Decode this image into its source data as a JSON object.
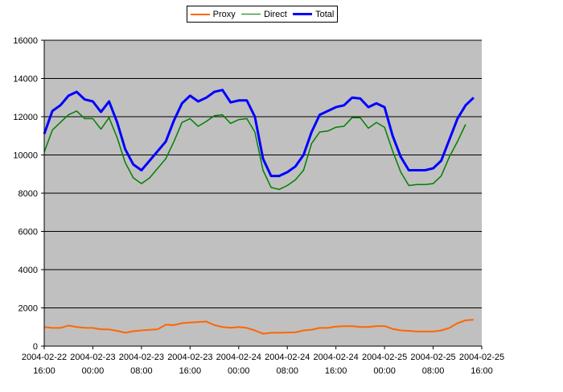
{
  "colors": {
    "plot_background": "#c0c0c0",
    "gridline": "#000000",
    "proxy": "#ff6600",
    "direct": "#008000",
    "total": "#0000ff"
  },
  "chart_data": {
    "type": "line",
    "title": "",
    "xlabel": "",
    "ylabel": "",
    "ylim": [
      0,
      16000
    ],
    "yticks": [
      "0",
      "2000",
      "4000",
      "6000",
      "8000",
      "10000",
      "12000",
      "14000",
      "16000"
    ],
    "grid": true,
    "legend_position": "top",
    "xtick_labels": [
      [
        "2004-02-22",
        "16:00"
      ],
      [
        "2004-02-23",
        "00:00"
      ],
      [
        "2004-02-23",
        "08:00"
      ],
      [
        "2004-02-23",
        "16:00"
      ],
      [
        "2004-02-24",
        "00:00"
      ],
      [
        "2004-02-24",
        "08:00"
      ],
      [
        "2004-02-24",
        "16:00"
      ],
      [
        "2004-02-25",
        "00:00"
      ],
      [
        "2004-02-25",
        "08:00"
      ],
      [
        "2004-02-25",
        "16:00"
      ]
    ],
    "x_start": "2004-02-22 16:00",
    "x_end": "2004-02-25 16:00",
    "series": [
      {
        "name": "Proxy",
        "color": "#ff6600",
        "points": [
          [
            0,
            1000
          ],
          [
            2,
            950
          ],
          [
            4,
            950
          ],
          [
            6,
            1080
          ],
          [
            8,
            1000
          ],
          [
            10,
            960
          ],
          [
            12,
            950
          ],
          [
            14,
            880
          ],
          [
            16,
            870
          ],
          [
            18,
            800
          ],
          [
            20,
            700
          ],
          [
            22,
            780
          ],
          [
            24,
            820
          ],
          [
            26,
            850
          ],
          [
            28,
            880
          ],
          [
            30,
            1120
          ],
          [
            32,
            1100
          ],
          [
            34,
            1200
          ],
          [
            36,
            1240
          ],
          [
            38,
            1260
          ],
          [
            40,
            1290
          ],
          [
            42,
            1100
          ],
          [
            44,
            1000
          ],
          [
            46,
            960
          ],
          [
            48,
            1000
          ],
          [
            50,
            950
          ],
          [
            52,
            820
          ],
          [
            54,
            650
          ],
          [
            56,
            700
          ],
          [
            58,
            700
          ],
          [
            60,
            710
          ],
          [
            62,
            720
          ],
          [
            64,
            820
          ],
          [
            66,
            860
          ],
          [
            68,
            950
          ],
          [
            70,
            950
          ],
          [
            72,
            1020
          ],
          [
            74,
            1040
          ],
          [
            76,
            1050
          ],
          [
            78,
            1000
          ],
          [
            80,
            1000
          ],
          [
            82,
            1050
          ],
          [
            84,
            1050
          ],
          [
            86,
            900
          ],
          [
            88,
            820
          ],
          [
            90,
            800
          ],
          [
            92,
            760
          ],
          [
            94,
            760
          ],
          [
            96,
            760
          ],
          [
            98,
            820
          ],
          [
            100,
            950
          ],
          [
            102,
            1200
          ],
          [
            104,
            1350
          ],
          [
            106,
            1380
          ]
        ]
      },
      {
        "name": "Direct",
        "color": "#008000",
        "points": [
          [
            0,
            10150
          ],
          [
            2,
            11300
          ],
          [
            4,
            11700
          ],
          [
            6,
            12100
          ],
          [
            8,
            12300
          ],
          [
            10,
            11900
          ],
          [
            12,
            11900
          ],
          [
            14,
            11350
          ],
          [
            16,
            11950
          ],
          [
            18,
            10900
          ],
          [
            20,
            9600
          ],
          [
            22,
            8800
          ],
          [
            24,
            8500
          ],
          [
            26,
            8800
          ],
          [
            28,
            9300
          ],
          [
            30,
            9800
          ],
          [
            32,
            10700
          ],
          [
            34,
            11700
          ],
          [
            36,
            11900
          ],
          [
            38,
            11500
          ],
          [
            40,
            11750
          ],
          [
            42,
            12050
          ],
          [
            44,
            12100
          ],
          [
            46,
            11650
          ],
          [
            48,
            11850
          ],
          [
            50,
            11900
          ],
          [
            52,
            11200
          ],
          [
            54,
            9200
          ],
          [
            56,
            8300
          ],
          [
            58,
            8200
          ],
          [
            60,
            8400
          ],
          [
            62,
            8700
          ],
          [
            64,
            9200
          ],
          [
            66,
            10600
          ],
          [
            68,
            11200
          ],
          [
            70,
            11250
          ],
          [
            72,
            11450
          ],
          [
            74,
            11500
          ],
          [
            76,
            11950
          ],
          [
            78,
            11950
          ],
          [
            80,
            11400
          ],
          [
            82,
            11700
          ],
          [
            84,
            11450
          ],
          [
            86,
            10200
          ],
          [
            88,
            9100
          ],
          [
            90,
            8400
          ],
          [
            92,
            8450
          ],
          [
            94,
            8450
          ],
          [
            96,
            8500
          ],
          [
            98,
            8900
          ],
          [
            100,
            9900
          ],
          [
            102,
            10700
          ],
          [
            104,
            11600
          ]
        ]
      },
      {
        "name": "Total",
        "color": "#0000ff",
        "points": [
          [
            0,
            11100
          ],
          [
            2,
            12300
          ],
          [
            4,
            12600
          ],
          [
            6,
            13100
          ],
          [
            8,
            13300
          ],
          [
            10,
            12900
          ],
          [
            12,
            12800
          ],
          [
            14,
            12250
          ],
          [
            16,
            12800
          ],
          [
            18,
            11700
          ],
          [
            20,
            10300
          ],
          [
            22,
            9500
          ],
          [
            24,
            9200
          ],
          [
            26,
            9700
          ],
          [
            28,
            10200
          ],
          [
            30,
            10700
          ],
          [
            32,
            11800
          ],
          [
            34,
            12700
          ],
          [
            36,
            13100
          ],
          [
            38,
            12800
          ],
          [
            40,
            13000
          ],
          [
            42,
            13300
          ],
          [
            44,
            13400
          ],
          [
            46,
            12750
          ],
          [
            48,
            12850
          ],
          [
            50,
            12850
          ],
          [
            52,
            12000
          ],
          [
            54,
            9800
          ],
          [
            56,
            8900
          ],
          [
            58,
            8900
          ],
          [
            60,
            9100
          ],
          [
            62,
            9400
          ],
          [
            64,
            10000
          ],
          [
            66,
            11200
          ],
          [
            68,
            12100
          ],
          [
            70,
            12300
          ],
          [
            72,
            12500
          ],
          [
            74,
            12600
          ],
          [
            76,
            13000
          ],
          [
            78,
            12950
          ],
          [
            80,
            12500
          ],
          [
            82,
            12700
          ],
          [
            84,
            12500
          ],
          [
            86,
            11000
          ],
          [
            88,
            9900
          ],
          [
            90,
            9200
          ],
          [
            92,
            9200
          ],
          [
            94,
            9200
          ],
          [
            96,
            9300
          ],
          [
            98,
            9700
          ],
          [
            100,
            10800
          ],
          [
            102,
            11900
          ],
          [
            104,
            12600
          ],
          [
            106,
            13000
          ]
        ]
      }
    ]
  }
}
